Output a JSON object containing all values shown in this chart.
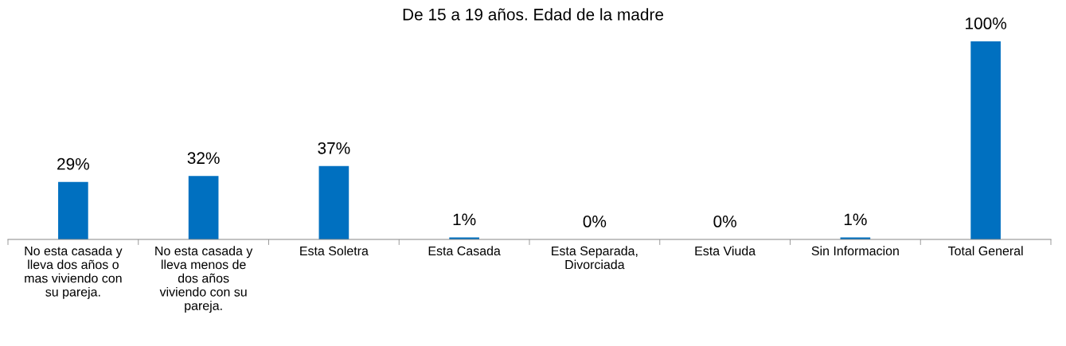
{
  "chart_data": {
    "type": "bar",
    "title": "De 15 a 19 años. Edad de la madre",
    "categories": [
      "No esta casada y\nlleva dos años o\nmas viviendo con\nsu pareja.",
      "No esta casada y\nlleva menos de\ndos años\nviviendo con su\npareja.",
      "Esta Soletra",
      "Esta Casada",
      "Esta Separada,\nDivorciada",
      "Esta Viuda",
      "Sin Informacion",
      "Total General"
    ],
    "values": [
      29,
      32,
      37,
      1,
      0,
      0,
      1,
      100
    ],
    "value_labels": [
      "29%",
      "32%",
      "37%",
      "1%",
      "0%",
      "0%",
      "1%",
      "100%"
    ],
    "color": "#0070c0"
  }
}
